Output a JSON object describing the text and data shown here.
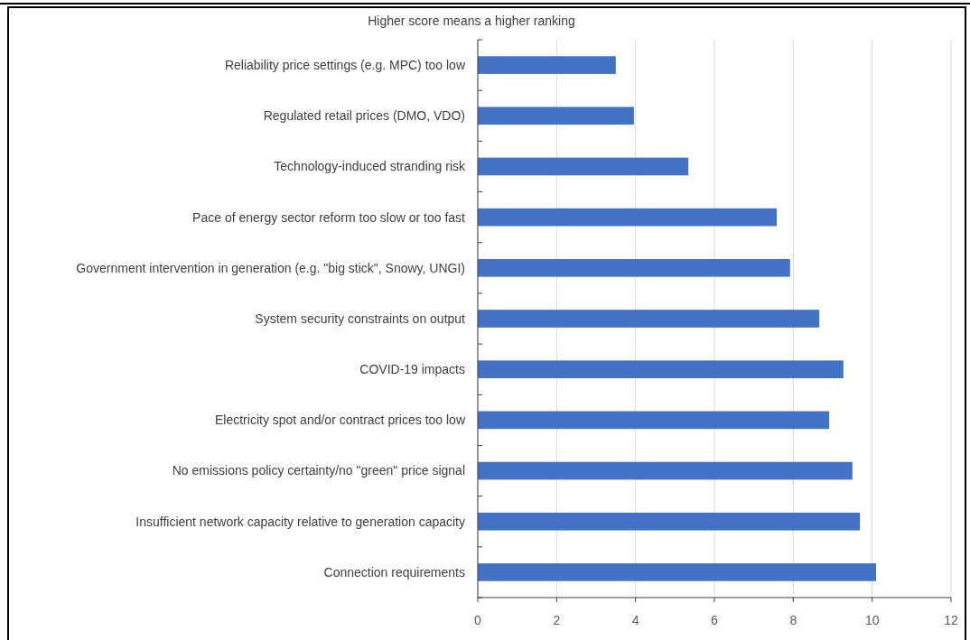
{
  "chart_data": {
    "type": "bar",
    "orientation": "horizontal",
    "subtitle": "Higher score means a higher ranking",
    "categories": [
      "Reliability price settings (e.g. MPC) too low",
      "Regulated retail prices (DMO, VDO)",
      "Technology-induced stranding risk",
      "Pace of energy sector reform too slow or too fast",
      "Government intervention in generation (e.g. \"big stick\", Snowy, UNGI)",
      "System security constraints on output",
      "COVID-19 impacts",
      "Electricity spot and/or contract prices too low",
      "No emissions policy certainty/no \"green\" price signal",
      "Insufficient network capacity relative to generation capacity",
      "Connection requirements"
    ],
    "values": [
      3.5,
      3.96,
      5.34,
      7.58,
      7.92,
      8.66,
      9.27,
      8.91,
      9.5,
      9.69,
      10.1
    ],
    "color": "#4472c4",
    "xlim": [
      0,
      12
    ],
    "xticks": [
      0,
      2,
      4,
      6,
      8,
      10,
      12
    ],
    "grid": "x"
  }
}
